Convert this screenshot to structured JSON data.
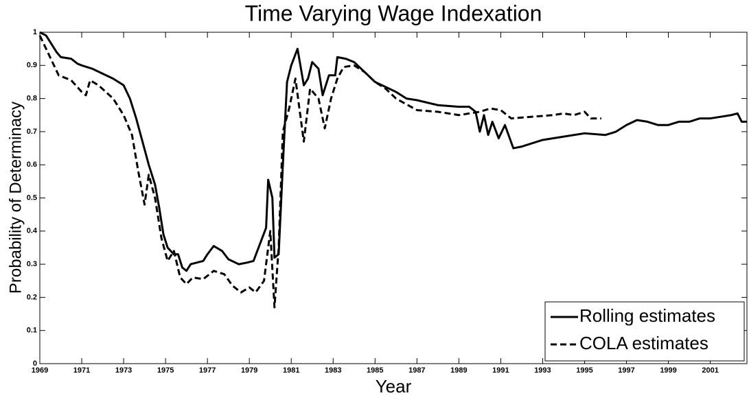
{
  "chart_data": {
    "type": "line",
    "title": "Time Varying Wage Indexation",
    "xlabel": "Year",
    "ylabel": "Probability of Determinacy",
    "xlim": [
      1969,
      2002.75
    ],
    "xticks": [
      1969,
      1971,
      1973,
      1975,
      1977,
      1979,
      1981,
      1983,
      1985,
      1987,
      1989,
      1991,
      1993,
      1995,
      1997,
      1999,
      2001
    ],
    "ylim": [
      0,
      1
    ],
    "yticks": [
      0,
      0.1,
      0.2,
      0.3,
      0.4,
      0.5,
      0.6,
      0.7,
      0.8,
      0.9,
      1
    ],
    "legend": "lower right",
    "series": [
      {
        "name": "Rolling estimates",
        "color": "#000000",
        "dash": "solid",
        "x": [
          1969.0,
          1969.3,
          1969.6,
          1969.8,
          1970.0,
          1970.5,
          1970.8,
          1971.0,
          1971.5,
          1972.0,
          1972.5,
          1973.0,
          1973.3,
          1973.6,
          1973.9,
          1974.2,
          1974.5,
          1974.7,
          1974.9,
          1975.1,
          1975.4,
          1975.6,
          1975.8,
          1976.0,
          1976.2,
          1976.8,
          1977.0,
          1977.3,
          1977.7,
          1978.0,
          1978.5,
          1978.9,
          1979.2,
          1979.5,
          1979.8,
          1979.9,
          1980.1,
          1980.2,
          1980.4,
          1980.6,
          1980.8,
          1981.0,
          1981.3,
          1981.6,
          1981.8,
          1982.0,
          1982.3,
          1982.5,
          1982.8,
          1983.1,
          1983.2,
          1983.6,
          1984.0,
          1984.5,
          1985.0,
          1986.0,
          1986.5,
          1987.0,
          1988.0,
          1989.0,
          1989.5,
          1989.8,
          1990.0,
          1990.2,
          1990.4,
          1990.6,
          1990.9,
          1991.2,
          1991.6,
          1992.0,
          1993.0,
          1994.0,
          1995.0,
          1996.0,
          1996.5,
          1997.0,
          1997.5,
          1998.0,
          1998.5,
          1999.0,
          1999.5,
          2000.0,
          2000.5,
          2001.0,
          2001.5,
          2002.0,
          2002.3,
          2002.5,
          2002.75
        ],
        "values": [
          1.0,
          0.99,
          0.96,
          0.94,
          0.925,
          0.92,
          0.905,
          0.9,
          0.89,
          0.875,
          0.86,
          0.84,
          0.8,
          0.74,
          0.67,
          0.6,
          0.54,
          0.47,
          0.39,
          0.35,
          0.33,
          0.33,
          0.29,
          0.28,
          0.3,
          0.31,
          0.33,
          0.355,
          0.34,
          0.315,
          0.3,
          0.305,
          0.31,
          0.36,
          0.41,
          0.555,
          0.5,
          0.32,
          0.33,
          0.6,
          0.85,
          0.9,
          0.95,
          0.84,
          0.86,
          0.91,
          0.89,
          0.81,
          0.87,
          0.87,
          0.925,
          0.92,
          0.91,
          0.88,
          0.85,
          0.82,
          0.8,
          0.795,
          0.78,
          0.775,
          0.775,
          0.76,
          0.7,
          0.75,
          0.69,
          0.73,
          0.68,
          0.72,
          0.65,
          0.655,
          0.675,
          0.685,
          0.695,
          0.69,
          0.7,
          0.72,
          0.735,
          0.73,
          0.72,
          0.72,
          0.73,
          0.73,
          0.74,
          0.74,
          0.745,
          0.75,
          0.755,
          0.73,
          0.73
        ]
      },
      {
        "name": "COLA estimates",
        "color": "#000000",
        "dash": "dashed",
        "x": [
          1969.0,
          1969.3,
          1969.6,
          1969.9,
          1970.5,
          1971.0,
          1971.2,
          1971.4,
          1971.8,
          1972.5,
          1973.0,
          1973.4,
          1973.7,
          1974.0,
          1974.2,
          1974.5,
          1974.8,
          1975.1,
          1975.4,
          1975.7,
          1976.0,
          1976.3,
          1976.8,
          1977.3,
          1977.8,
          1978.2,
          1978.6,
          1979.0,
          1979.3,
          1979.7,
          1980.0,
          1980.2,
          1980.4,
          1980.6,
          1980.9,
          1981.2,
          1981.6,
          1981.9,
          1982.3,
          1982.6,
          1982.9,
          1983.2,
          1983.5,
          1984.0,
          1984.5,
          1985.0,
          1985.5,
          1986.0,
          1987.0,
          1988.0,
          1989.0,
          1990.0,
          1990.5,
          1991.0,
          1991.5,
          1992.5,
          1993.5,
          1994.0,
          1994.5,
          1995.0,
          1995.3,
          1995.8
        ],
        "values": [
          0.99,
          0.95,
          0.91,
          0.87,
          0.855,
          0.82,
          0.81,
          0.855,
          0.84,
          0.8,
          0.75,
          0.69,
          0.58,
          0.48,
          0.57,
          0.5,
          0.38,
          0.31,
          0.34,
          0.26,
          0.24,
          0.26,
          0.255,
          0.28,
          0.27,
          0.235,
          0.215,
          0.23,
          0.215,
          0.25,
          0.4,
          0.17,
          0.35,
          0.7,
          0.77,
          0.86,
          0.67,
          0.83,
          0.8,
          0.71,
          0.8,
          0.86,
          0.895,
          0.9,
          0.88,
          0.85,
          0.83,
          0.8,
          0.765,
          0.76,
          0.75,
          0.76,
          0.77,
          0.765,
          0.74,
          0.745,
          0.75,
          0.755,
          0.75,
          0.76,
          0.74,
          0.74
        ]
      }
    ]
  }
}
